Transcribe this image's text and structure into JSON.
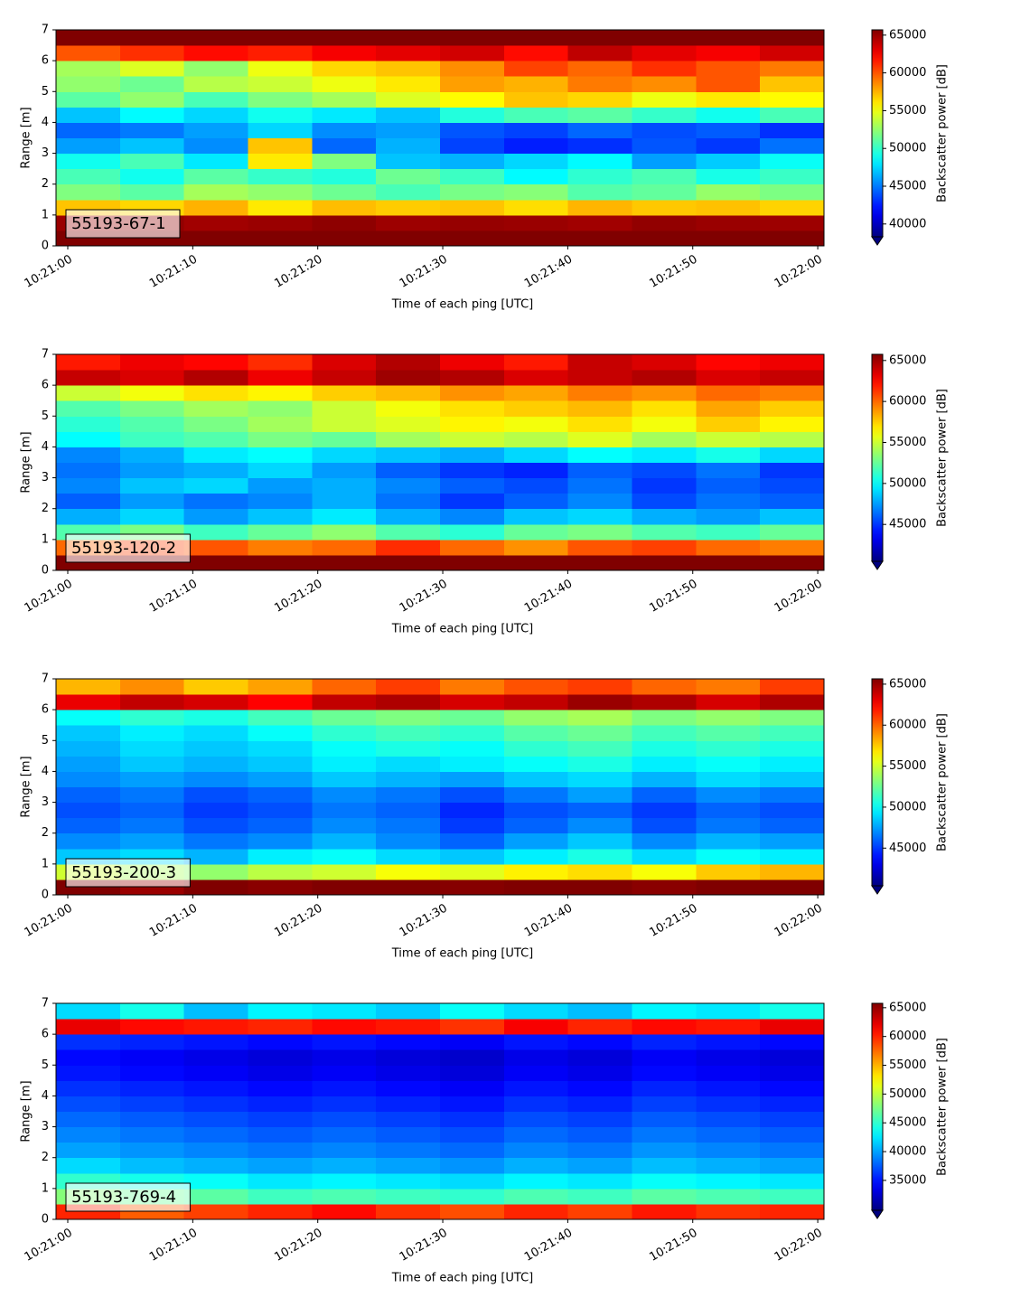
{
  "chart_data": [
    {
      "type": "heatmap",
      "annotation": "55193-67-1",
      "xlabel": "Time of each ping [UTC]",
      "ylabel": "Range [m]",
      "colorbar_label": "Backscatter power [dB]",
      "colormap": "jet",
      "extend": "min",
      "xlim": [
        "10:20:59.06",
        "10:22:00.5"
      ],
      "xticks": [
        "10:21:00",
        "10:21:10",
        "10:21:20",
        "10:21:30",
        "10:21:40",
        "10:21:50",
        "10:22:00"
      ],
      "ylim": [
        0,
        7
      ],
      "yticks": [
        0,
        1,
        2,
        3,
        4,
        5,
        6,
        7
      ],
      "zlim": [
        38300,
        65700
      ],
      "zticks": [
        40000,
        45000,
        50000,
        55000,
        60000,
        65000
      ],
      "z": [
        [
          65700,
          65700,
          65700,
          65700,
          65700,
          65700,
          65700,
          65700,
          65700,
          65700,
          65700,
          65700
        ],
        [
          65000,
          65200,
          64800,
          65000,
          65300,
          64900,
          65100,
          65000,
          64800,
          65200,
          65000,
          64900
        ],
        [
          57000,
          56500,
          57500,
          56000,
          57200,
          56800,
          57000,
          56300,
          57400,
          56900,
          57100,
          56600
        ],
        [
          52000,
          51000,
          53000,
          52500,
          51500,
          50500,
          51800,
          52200,
          50800,
          51200,
          52600,
          51900
        ],
        [
          50500,
          49000,
          51000,
          50000,
          49500,
          51500,
          50200,
          48500,
          49800,
          50600,
          49200,
          50100
        ],
        [
          49000,
          50500,
          48000,
          56000,
          52000,
          47000,
          46500,
          47500,
          48500,
          46000,
          47200,
          48800
        ],
        [
          46000,
          47000,
          45500,
          57000,
          44500,
          46500,
          43500,
          42500,
          43000,
          44000,
          43200,
          44800
        ],
        [
          44500,
          45000,
          46000,
          47500,
          45500,
          46000,
          44000,
          43500,
          44500,
          43800,
          44200,
          43000
        ],
        [
          47000,
          48500,
          47500,
          49000,
          48000,
          47000,
          49500,
          50500,
          51000,
          50000,
          49000,
          50500
        ],
        [
          51000,
          52500,
          50500,
          52000,
          53000,
          54500,
          55500,
          57000,
          56500,
          55000,
          56000,
          55500
        ],
        [
          52500,
          51500,
          53500,
          54000,
          55000,
          56000,
          58000,
          57500,
          59000,
          58500,
          60000,
          57000
        ],
        [
          53000,
          54500,
          52500,
          55000,
          56500,
          57000,
          58500,
          60500,
          59500,
          61000,
          60000,
          59000
        ],
        [
          60000,
          61000,
          62000,
          61500,
          62500,
          63000,
          63500,
          62000,
          64000,
          63000,
          62500,
          63500
        ],
        [
          65700,
          65700,
          65700,
          65700,
          65700,
          65700,
          65700,
          65700,
          65700,
          65700,
          65700,
          65700
        ]
      ]
    },
    {
      "type": "heatmap",
      "annotation": "55193-120-2",
      "xlabel": "Time of each ping [UTC]",
      "ylabel": "Range [m]",
      "colorbar_label": "Backscatter power [dB]",
      "colormap": "jet",
      "extend": "min",
      "xlim": [
        "10:20:59.06",
        "10:22:00.5"
      ],
      "xticks": [
        "10:21:00",
        "10:21:10",
        "10:21:20",
        "10:21:30",
        "10:21:40",
        "10:21:50",
        "10:22:00"
      ],
      "ylim": [
        0,
        7
      ],
      "yticks": [
        0,
        1,
        2,
        3,
        4,
        5,
        6,
        7
      ],
      "zlim": [
        40500,
        65750
      ],
      "zticks": [
        45000,
        50000,
        55000,
        60000,
        65000
      ],
      "z": [
        [
          65750,
          65750,
          65750,
          65750,
          65750,
          65750,
          65750,
          65750,
          65750,
          65750,
          65750,
          65750
        ],
        [
          60000,
          61000,
          60500,
          59500,
          60000,
          61500,
          60000,
          59000,
          60500,
          61000,
          60000,
          59500
        ],
        [
          52000,
          53000,
          51500,
          52500,
          53500,
          52000,
          51000,
          52500,
          53000,
          52000,
          51500,
          52500
        ],
        [
          48000,
          49000,
          47500,
          48500,
          49500,
          48000,
          47000,
          48500,
          49000,
          48000,
          47500,
          48500
        ],
        [
          46000,
          47500,
          46500,
          47000,
          48000,
          46500,
          45000,
          46000,
          47000,
          45500,
          46500,
          46000
        ],
        [
          47000,
          48500,
          49000,
          47500,
          48000,
          47000,
          46000,
          45500,
          46500,
          45000,
          46000,
          45500
        ],
        [
          46500,
          47500,
          48000,
          49000,
          47500,
          46000,
          45000,
          44500,
          46000,
          45500,
          46500,
          45000
        ],
        [
          47000,
          48000,
          49500,
          50000,
          49000,
          48500,
          48000,
          49000,
          50000,
          49500,
          50500,
          49000
        ],
        [
          50000,
          51500,
          52000,
          53000,
          52500,
          54000,
          55000,
          54500,
          55500,
          54000,
          55000,
          54500
        ],
        [
          51000,
          52000,
          53000,
          54000,
          55000,
          55500,
          56500,
          56000,
          57000,
          56000,
          57500,
          56500
        ],
        [
          52000,
          53000,
          54000,
          53500,
          55000,
          56000,
          57000,
          57500,
          58000,
          57000,
          58500,
          57500
        ],
        [
          55000,
          56000,
          57000,
          56500,
          57500,
          58000,
          59000,
          58500,
          59500,
          59000,
          60000,
          59500
        ],
        [
          64000,
          63500,
          64500,
          63000,
          64000,
          65000,
          64500,
          63500,
          64000,
          64500,
          63500,
          64000
        ],
        [
          62000,
          63000,
          62500,
          61500,
          63500,
          64500,
          63000,
          62000,
          64000,
          63500,
          62500,
          63000
        ]
      ]
    },
    {
      "type": "heatmap",
      "annotation": "55193-200-3",
      "xlabel": "Time of each ping [UTC]",
      "ylabel": "Range [m]",
      "colorbar_label": "Backscatter power [dB]",
      "colormap": "jet",
      "extend": "min",
      "xlim": [
        "10:20:59.06",
        "10:22:00.5"
      ],
      "xticks": [
        "10:21:00",
        "10:21:10",
        "10:21:20",
        "10:21:30",
        "10:21:40",
        "10:21:50",
        "10:22:00"
      ],
      "ylim": [
        0,
        7
      ],
      "yticks": [
        0,
        1,
        2,
        3,
        4,
        5,
        6,
        7
      ],
      "zlim": [
        40400,
        65650
      ],
      "zticks": [
        45000,
        50000,
        55000,
        60000,
        65000
      ],
      "z": [
        [
          65650,
          65000,
          65650,
          65400,
          65650,
          65650,
          65500,
          65650,
          65650,
          65400,
          65650,
          65650
        ],
        [
          55000,
          54000,
          53500,
          54500,
          55000,
          56000,
          55500,
          56500,
          57000,
          56000,
          57500,
          58000
        ],
        [
          48500,
          49000,
          48000,
          49500,
          50000,
          49000,
          48500,
          49500,
          50500,
          49000,
          50000,
          49500
        ],
        [
          47000,
          47500,
          46500,
          47000,
          48000,
          47000,
          46000,
          47500,
          48500,
          47000,
          48000,
          47500
        ],
        [
          46000,
          46500,
          45500,
          46000,
          47000,
          46500,
          45000,
          46000,
          47000,
          45500,
          46500,
          46000
        ],
        [
          45500,
          46000,
          45000,
          45500,
          46500,
          46000,
          44500,
          45500,
          46000,
          45000,
          46000,
          45500
        ],
        [
          46000,
          46500,
          45500,
          46000,
          47000,
          46500,
          45500,
          46500,
          47500,
          46000,
          47000,
          46500
        ],
        [
          47000,
          47500,
          47000,
          47500,
          48500,
          48000,
          47500,
          48500,
          49000,
          48000,
          49000,
          48500
        ],
        [
          47500,
          48500,
          48000,
          48500,
          49500,
          49000,
          49500,
          50000,
          50500,
          49500,
          50000,
          49500
        ],
        [
          48000,
          49000,
          48500,
          49000,
          50000,
          50500,
          50000,
          51000,
          51500,
          50500,
          51000,
          50500
        ],
        [
          48500,
          49500,
          49000,
          50000,
          51000,
          51500,
          51000,
          52000,
          52500,
          51500,
          52000,
          51500
        ],
        [
          50000,
          51000,
          50500,
          51500,
          52500,
          53000,
          52500,
          53500,
          54000,
          53000,
          53500,
          53000
        ],
        [
          63000,
          64000,
          63500,
          62500,
          64000,
          64500,
          63500,
          64000,
          65000,
          64500,
          63500,
          64500
        ],
        [
          58000,
          59000,
          57500,
          58500,
          60000,
          61000,
          59500,
          60500,
          61000,
          60000,
          59500,
          61000
        ]
      ]
    },
    {
      "type": "heatmap",
      "annotation": "55193-769-4",
      "xlabel": "Time of each ping [UTC]",
      "ylabel": "Range [m]",
      "colorbar_label": "Backscatter power [dB]",
      "colormap": "jet",
      "extend": "min",
      "xlim": [
        "10:20:59.06",
        "10:22:00.5"
      ],
      "xticks": [
        "10:21:00",
        "10:21:10",
        "10:21:20",
        "10:21:30",
        "10:21:40",
        "10:21:50",
        "10:22:00"
      ],
      "ylim": [
        0,
        7
      ],
      "yticks": [
        0,
        1,
        2,
        3,
        4,
        5,
        6,
        7
      ],
      "zlim": [
        29800,
        65760
      ],
      "zticks": [
        35000,
        40000,
        45000,
        50000,
        55000,
        60000,
        65000
      ],
      "z": [
        [
          60000,
          58000,
          59000,
          60000,
          61000,
          59500,
          58500,
          60000,
          59000,
          60500,
          59500,
          60000
        ],
        [
          48000,
          47000,
          46500,
          45500,
          46000,
          45500,
          45000,
          46000,
          45500,
          46500,
          46000,
          45500
        ],
        [
          45000,
          44000,
          43500,
          42500,
          43000,
          42500,
          42000,
          43000,
          42500,
          43500,
          43000,
          42500
        ],
        [
          42000,
          41000,
          40500,
          40000,
          40500,
          40000,
          39500,
          40500,
          40000,
          41000,
          40500,
          40000
        ],
        [
          40000,
          39500,
          39000,
          38500,
          39000,
          38500,
          38000,
          39000,
          38500,
          39500,
          39000,
          38500
        ],
        [
          39000,
          38500,
          38000,
          37500,
          38000,
          37500,
          37000,
          38000,
          37500,
          38500,
          38000,
          37500
        ],
        [
          38000,
          37500,
          37000,
          36500,
          37000,
          36500,
          36000,
          37000,
          36500,
          37500,
          37000,
          36500
        ],
        [
          37000,
          36500,
          36000,
          35500,
          36000,
          35500,
          35000,
          36000,
          35500,
          36500,
          36000,
          35500
        ],
        [
          36000,
          35500,
          35000,
          34500,
          35000,
          34500,
          34000,
          35000,
          34500,
          35500,
          35000,
          34500
        ],
        [
          35000,
          34500,
          34000,
          33500,
          34000,
          33500,
          33000,
          34000,
          33500,
          34500,
          34000,
          33500
        ],
        [
          34500,
          34000,
          33500,
          33000,
          33500,
          33000,
          32500,
          33500,
          33000,
          34000,
          33500,
          33000
        ],
        [
          36000,
          35500,
          35000,
          34500,
          35000,
          34500,
          34000,
          35000,
          34500,
          35500,
          35000,
          34500
        ],
        [
          62000,
          61000,
          60500,
          60000,
          61000,
          60500,
          59500,
          61500,
          60000,
          61000,
          60500,
          62000
        ],
        [
          42000,
          44000,
          41000,
          43000,
          42500,
          41500,
          43500,
          42000,
          41000,
          43000,
          42500,
          44000
        ]
      ]
    }
  ]
}
